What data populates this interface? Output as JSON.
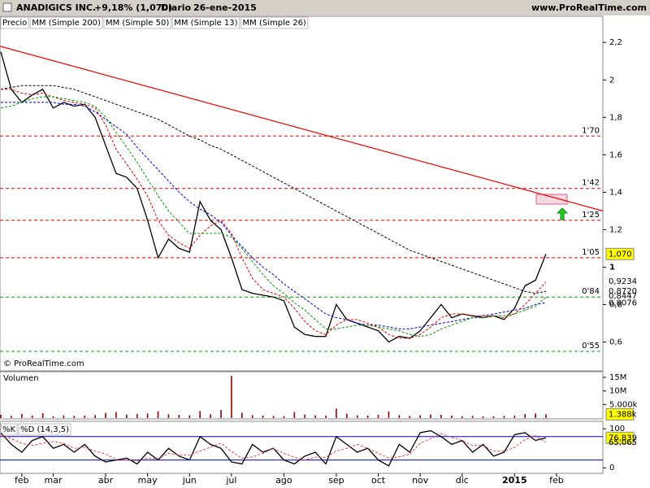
{
  "header": {
    "symbol": "ANADIGICS INC.",
    "change": "+9,18% (1,070)",
    "period": "Diario",
    "date": "26-ene-2015",
    "site": "www.ProRealTime.com"
  },
  "chart_data": [
    {
      "type": "line",
      "copyright": "© ProRealTime.com",
      "categories": [
        null,
        null,
        "feb",
        null,
        null,
        "mar",
        null,
        null,
        null,
        null,
        "abr",
        null,
        null,
        null,
        "may",
        null,
        null,
        null,
        "jun",
        null,
        null,
        null,
        "jul",
        null,
        null,
        null,
        null,
        "ago",
        null,
        null,
        null,
        null,
        "sep",
        null,
        null,
        null,
        "oct",
        null,
        null,
        null,
        "nov",
        null,
        null,
        null,
        "dic",
        null,
        null,
        null,
        null,
        "2015",
        null,
        null,
        null,
        "feb"
      ],
      "series": [
        {
          "name": "Precio",
          "color": "#000000",
          "values": [
            2.15,
            1.95,
            1.88,
            1.92,
            1.95,
            1.85,
            1.88,
            1.86,
            1.87,
            1.8,
            1.65,
            1.5,
            1.48,
            1.42,
            1.25,
            1.05,
            1.15,
            1.1,
            1.08,
            1.35,
            1.25,
            1.2,
            1.05,
            0.88,
            0.86,
            0.85,
            0.84,
            0.82,
            0.68,
            0.64,
            0.63,
            0.63,
            0.8,
            0.72,
            0.7,
            0.68,
            0.66,
            0.6,
            0.63,
            0.62,
            0.66,
            0.73,
            0.8,
            0.73,
            0.75,
            0.74,
            0.73,
            0.74,
            0.72,
            0.78,
            0.9,
            0.93,
            1.07,
            null
          ],
          "last_value": 1.07,
          "last_label": "1,070"
        },
        {
          "name": "MM (Simple 200)",
          "color": "#000000",
          "dashed": true,
          "values": [
            1.95,
            1.96,
            1.97,
            1.97,
            1.97,
            1.97,
            1.96,
            1.95,
            1.93,
            1.91,
            1.89,
            1.87,
            1.85,
            1.83,
            1.81,
            1.79,
            1.76,
            1.73,
            1.7,
            1.68,
            1.65,
            1.63,
            1.6,
            1.57,
            1.54,
            1.51,
            1.48,
            1.45,
            1.42,
            1.39,
            1.36,
            1.33,
            1.3,
            1.27,
            1.24,
            1.21,
            1.18,
            1.15,
            1.12,
            1.09,
            1.07,
            1.05,
            1.03,
            1.01,
            0.99,
            0.97,
            0.95,
            0.93,
            0.91,
            0.89,
            0.87,
            0.86,
            0.87,
            null
          ],
          "last_value": 0.872,
          "last_label": "0,8720"
        },
        {
          "name": "MM (Simple 50)",
          "color": "#0000cc",
          "dashed": true,
          "values": [
            1.88,
            1.88,
            1.88,
            1.88,
            1.88,
            1.88,
            1.87,
            1.87,
            1.86,
            1.83,
            1.79,
            1.75,
            1.71,
            1.64,
            1.58,
            1.52,
            1.46,
            1.4,
            1.35,
            1.31,
            1.28,
            1.24,
            1.17,
            1.11,
            1.05,
            1.0,
            0.96,
            0.91,
            0.87,
            0.83,
            0.79,
            0.75,
            0.73,
            0.72,
            0.7,
            0.69,
            0.69,
            0.68,
            0.67,
            0.67,
            0.68,
            0.69,
            0.7,
            0.71,
            0.72,
            0.73,
            0.74,
            0.75,
            0.76,
            0.77,
            0.78,
            0.8,
            0.81,
            null
          ],
          "last_value": 0.8076,
          "last_label": "0,8076"
        },
        {
          "name": "MM (Simple 13)",
          "color": "#dd0000",
          "dashed": true,
          "values": [
            1.95,
            1.95,
            1.93,
            1.92,
            1.93,
            1.91,
            1.89,
            1.88,
            1.87,
            1.85,
            1.76,
            1.63,
            1.55,
            1.47,
            1.38,
            1.25,
            1.17,
            1.13,
            1.1,
            1.17,
            1.22,
            1.25,
            1.18,
            1.05,
            0.94,
            0.88,
            0.86,
            0.84,
            0.78,
            0.71,
            0.66,
            0.64,
            0.69,
            0.72,
            0.72,
            0.7,
            0.68,
            0.64,
            0.62,
            0.62,
            0.64,
            0.68,
            0.73,
            0.75,
            0.75,
            0.74,
            0.74,
            0.74,
            0.73,
            0.75,
            0.8,
            0.86,
            0.92,
            null
          ],
          "last_value": 0.9234,
          "last_label": "0,9234"
        },
        {
          "name": "MM (Simple 26)",
          "color": "#009900",
          "dashed": true,
          "values": [
            1.85,
            1.86,
            1.88,
            1.9,
            1.91,
            1.91,
            1.9,
            1.89,
            1.88,
            1.86,
            1.8,
            1.72,
            1.64,
            1.56,
            1.47,
            1.38,
            1.3,
            1.24,
            1.18,
            1.18,
            1.18,
            1.18,
            1.16,
            1.1,
            1.03,
            0.96,
            0.9,
            0.86,
            0.81,
            0.77,
            0.72,
            0.67,
            0.67,
            0.68,
            0.69,
            0.69,
            0.68,
            0.67,
            0.66,
            0.64,
            0.63,
            0.64,
            0.67,
            0.69,
            0.71,
            0.73,
            0.73,
            0.74,
            0.74,
            0.75,
            0.77,
            0.79,
            0.84,
            null
          ],
          "last_value": 0.8447,
          "last_label": "0,8447"
        }
      ],
      "levels": [
        {
          "value": 1.7,
          "label": "1'70",
          "color": "#dd0000"
        },
        {
          "value": 1.42,
          "label": "1'42",
          "color": "#dd0000"
        },
        {
          "value": 1.25,
          "label": "1'25",
          "color": "#dd0000"
        },
        {
          "value": 1.05,
          "label": "1'05",
          "color": "#dd0000"
        },
        {
          "value": 0.84,
          "label": "0'84",
          "color": "#009900"
        },
        {
          "value": 0.55,
          "label": "0'55",
          "color": "#009900"
        }
      ],
      "trendline": {
        "color": "#ee0000",
        "values": [
          2.18,
          1.3
        ]
      },
      "ylim": [
        0.45,
        2.34
      ],
      "yticks": [
        {
          "value": 2.2,
          "label": "2,2"
        },
        2,
        {
          "value": 1.8,
          "label": "1,8"
        },
        {
          "value": 1.6,
          "label": "1,6"
        },
        {
          "value": 1.4,
          "label": "1,4"
        },
        {
          "value": 1.2,
          "label": "1,2"
        },
        1,
        {
          "value": 0.8,
          "label": "0,8"
        },
        {
          "value": 0.6,
          "label": "0,6"
        }
      ]
    },
    {
      "type": "bar",
      "title": "Volumen",
      "color": "#990000",
      "values": [
        1.2,
        0.8,
        1.5,
        0.9,
        1.8,
        0.7,
        1.0,
        0.8,
        0.9,
        1.1,
        1.9,
        2.2,
        1.3,
        1.5,
        1.7,
        2.5,
        1.4,
        1.2,
        1.0,
        2.6,
        1.4,
        3.0,
        15.6,
        2.0,
        1.1,
        0.9,
        0.8,
        0.7,
        2.2,
        1.3,
        1.0,
        0.9,
        3.5,
        1.6,
        1.0,
        0.9,
        1.2,
        2.4,
        1.1,
        0.8,
        1.0,
        1.3,
        1.2,
        0.9,
        0.7,
        0.8,
        0.6,
        0.7,
        0.8,
        0.9,
        1.5,
        1.7,
        1.388,
        null
      ],
      "last_value": 1.388,
      "last_label": "1.388k",
      "ylim": [
        0,
        16.5
      ],
      "yticks": [
        {
          "value": 15,
          "label": "15M"
        },
        {
          "value": 10,
          "label": "10M"
        },
        {
          "value": 5,
          "label": "5.000k"
        }
      ]
    },
    {
      "type": "line",
      "series": [
        {
          "name": "%K",
          "color": "#000000",
          "values": [
            90,
            60,
            40,
            70,
            80,
            50,
            60,
            40,
            60,
            30,
            15,
            20,
            25,
            10,
            40,
            20,
            50,
            30,
            20,
            80,
            60,
            50,
            15,
            10,
            60,
            40,
            50,
            20,
            10,
            30,
            40,
            10,
            80,
            60,
            40,
            50,
            20,
            5,
            60,
            40,
            90,
            95,
            80,
            60,
            70,
            40,
            60,
            30,
            40,
            85,
            90,
            70,
            76.839,
            null
          ],
          "last_value": 76.839,
          "last_label": "76,839"
        },
        {
          "name": "%D (14,3,5)",
          "color": "#dd4444",
          "dashed": true,
          "values": [
            85,
            75,
            63,
            57,
            63,
            67,
            63,
            50,
            53,
            43,
            35,
            22,
            20,
            18,
            25,
            23,
            37,
            33,
            33,
            43,
            53,
            63,
            42,
            25,
            28,
            37,
            50,
            37,
            27,
            20,
            27,
            27,
            43,
            50,
            60,
            50,
            37,
            25,
            28,
            35,
            63,
            75,
            88,
            78,
            70,
            57,
            57,
            43,
            43,
            52,
            72,
            82,
            65.065,
            null
          ],
          "last_value": 65.065,
          "last_label": "65,065"
        }
      ],
      "levels": [
        {
          "value": 80,
          "color": "#0000cc"
        },
        {
          "value": 20,
          "color": "#0000cc"
        }
      ],
      "ylim": [
        -10,
        115
      ],
      "yticks": [
        100,
        0
      ]
    }
  ]
}
